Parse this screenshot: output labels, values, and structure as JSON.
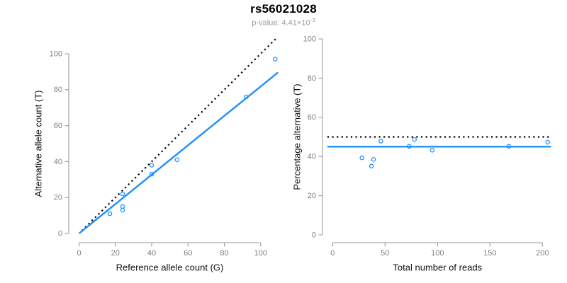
{
  "header": {
    "title": "rs56021028",
    "p_label": "p-value: 4.41×10",
    "p_exponent": "-3"
  },
  "colors": {
    "accent_blue": "#1E90FF",
    "dotted_line": "#000000",
    "axis_line": "#9a9a9a",
    "tick_text": "#808080",
    "label_text": "#111111",
    "subtitle_text": "#9b9b9b"
  },
  "chart_data": [
    {
      "type": "scatter",
      "name": "allele-counts",
      "xlabel": "Reference allele count (G)",
      "ylabel": "Alternative allele count (T)",
      "xticks": [
        0,
        20,
        40,
        60,
        80,
        100
      ],
      "yticks": [
        0,
        20,
        40,
        60,
        80,
        100
      ],
      "xlim": [
        0,
        110
      ],
      "ylim": [
        0,
        100
      ],
      "grid": false,
      "point_color": "#1E90FF",
      "points": [
        [
          17,
          11
        ],
        [
          24,
          13
        ],
        [
          24,
          15
        ],
        [
          24,
          22
        ],
        [
          40,
          33
        ],
        [
          40,
          38
        ],
        [
          54,
          41
        ],
        [
          92,
          76
        ],
        [
          108,
          97
        ]
      ],
      "lines": [
        {
          "name": "identity-line",
          "type": "abline",
          "slope": 1,
          "intercept": 0,
          "style": "dotted",
          "color": "#000000",
          "x_range": [
            1.5,
            108.5
          ]
        },
        {
          "name": "fit-line",
          "type": "abline",
          "slope": 0.818,
          "intercept": 0,
          "style": "solid",
          "color": "#1E90FF",
          "x_range": [
            0,
            109.5
          ]
        }
      ]
    },
    {
      "type": "scatter",
      "name": "percentage-vs-reads",
      "xlabel": "Total number of reads",
      "ylabel": "Percentage alternative (T)",
      "xticks": [
        0,
        50,
        100,
        150,
        200
      ],
      "yticks": [
        0,
        20,
        40,
        60,
        80,
        100
      ],
      "xlim": [
        0,
        208
      ],
      "ylim": [
        0,
        100
      ],
      "grid": false,
      "point_color": "#1E90FF",
      "points": [
        [
          28,
          39.3
        ],
        [
          37,
          35.1
        ],
        [
          39,
          38.5
        ],
        [
          46,
          47.8
        ],
        [
          73,
          45.2
        ],
        [
          78,
          48.7
        ],
        [
          95,
          43.2
        ],
        [
          168,
          45.2
        ],
        [
          205,
          47.3
        ]
      ],
      "lines": [
        {
          "name": "null-line-50pct",
          "type": "hline",
          "y": 50,
          "style": "dotted",
          "color": "#000000",
          "x_range": [
            -5,
            208
          ]
        },
        {
          "name": "fit-line",
          "type": "hline",
          "y": 45,
          "style": "solid",
          "color": "#1E90FF",
          "x_range": [
            -5,
            208
          ]
        }
      ]
    }
  ]
}
